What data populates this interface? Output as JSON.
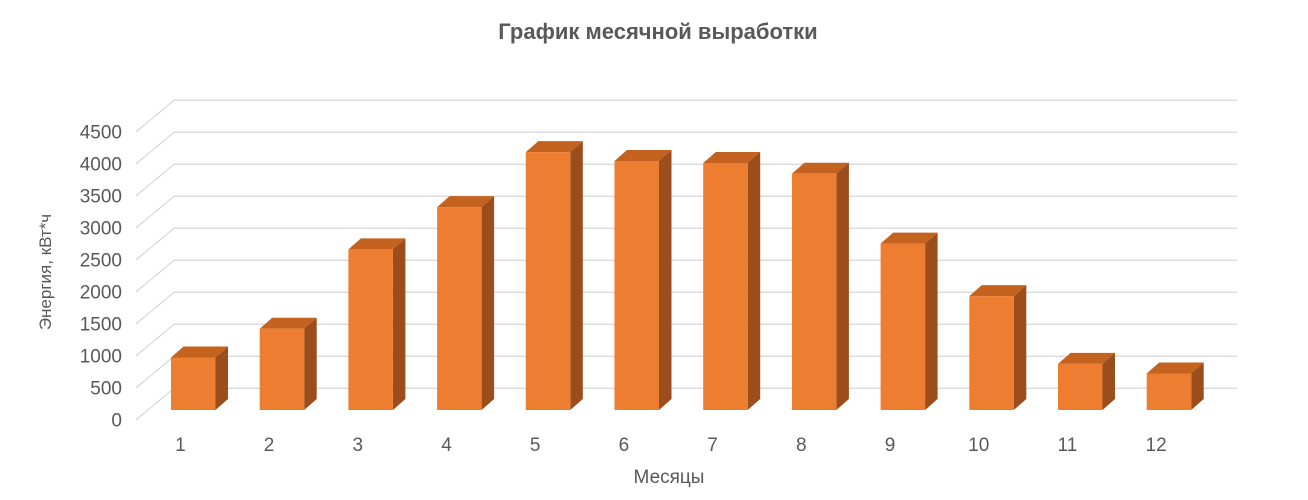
{
  "title": "График месячной выработки",
  "colors": {
    "background": "#FFFFFF",
    "bar_front": "#ED7D31",
    "bar_top": "#C4621F",
    "bar_side": "#9B4D1B",
    "gridline": "#D9D9D9",
    "text": "#595959"
  },
  "chart_data": {
    "type": "bar",
    "style": "3d-column",
    "title": "График месячной выработки",
    "xlabel": "Месяцы",
    "ylabel": "Энергия, кВт*ч",
    "categories": [
      "1",
      "2",
      "3",
      "4",
      "5",
      "6",
      "7",
      "8",
      "9",
      "10",
      "11",
      "12"
    ],
    "series": [
      {
        "name": "Энергия, кВт*ч",
        "values": [
          820,
          1270,
          2510,
          3170,
          4030,
          3890,
          3860,
          3690,
          2600,
          1780,
          720,
          570
        ]
      }
    ],
    "ylim": [
      0,
      4500
    ],
    "ytick_step": 500,
    "yticks": [
      0,
      500,
      1000,
      1500,
      2000,
      2500,
      3000,
      3500,
      4000,
      4500
    ],
    "grid": true,
    "legend": false
  }
}
